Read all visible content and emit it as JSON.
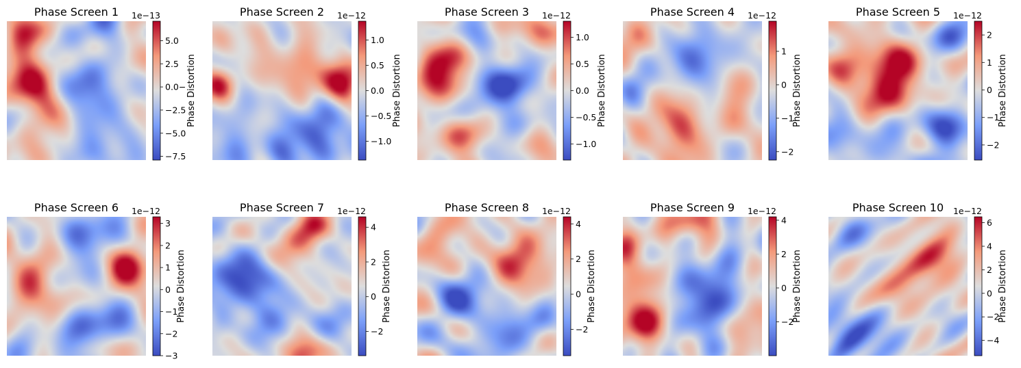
{
  "chart_data": [
    {
      "type": "heatmap",
      "title": "Phase Screen 1",
      "colorbar": {
        "label": "Phase Distortion",
        "offset_text": "1e−13",
        "ticks": [
          5.0,
          2.5,
          0.0,
          -2.5,
          -5.0,
          -7.5
        ],
        "tick_labels": [
          "5.0",
          "2.5",
          "0.0−",
          "−2.5",
          "−5.0",
          "−7.5"
        ],
        "vmin": -7.9,
        "vmax": 7.1
      },
      "colormap": "coolwarm",
      "axes": "off",
      "blobs": [
        {
          "x": 0.15,
          "y": 0.45,
          "v": 0.85,
          "s": 0.16
        },
        {
          "x": 0.12,
          "y": 0.05,
          "v": 0.7,
          "s": 0.09
        },
        {
          "x": 0.6,
          "y": 0.45,
          "v": -0.8,
          "s": 0.14
        },
        {
          "x": 0.72,
          "y": 0.05,
          "v": -0.6,
          "s": 0.1
        },
        {
          "x": 0.85,
          "y": 0.25,
          "v": 0.4,
          "s": 0.1
        },
        {
          "x": 0.6,
          "y": 0.95,
          "v": -0.6,
          "s": 0.12
        },
        {
          "x": 0.15,
          "y": 0.95,
          "v": 0.5,
          "s": 0.1
        },
        {
          "x": 0.95,
          "y": 0.75,
          "v": -0.3,
          "s": 0.1
        }
      ]
    },
    {
      "type": "heatmap",
      "title": "Phase Screen 2",
      "colorbar": {
        "label": "Phase Distortion",
        "offset_text": "1e−12",
        "ticks": [
          1.0,
          0.5,
          0.0,
          -0.5,
          -1.0
        ],
        "tick_labels": [
          "1.0",
          "0.5",
          "0.0",
          "−0.5",
          "−1.0"
        ],
        "vmin": -1.37,
        "vmax": 1.37
      },
      "colormap": "coolwarm",
      "axes": "off",
      "blobs": [
        {
          "x": 0.92,
          "y": 0.45,
          "v": 0.95,
          "s": 0.12
        },
        {
          "x": 0.6,
          "y": 0.35,
          "v": 0.6,
          "s": 0.14
        },
        {
          "x": 0.3,
          "y": 0.2,
          "v": 0.4,
          "s": 0.1
        },
        {
          "x": 0.05,
          "y": 0.45,
          "v": 0.6,
          "s": 0.08
        },
        {
          "x": 0.75,
          "y": 0.8,
          "v": -0.9,
          "s": 0.14
        },
        {
          "x": 0.15,
          "y": 0.85,
          "v": -0.5,
          "s": 0.12
        },
        {
          "x": 0.5,
          "y": 0.95,
          "v": -0.5,
          "s": 0.1
        },
        {
          "x": 0.9,
          "y": 0.1,
          "v": -0.2,
          "s": 0.08
        }
      ]
    },
    {
      "type": "heatmap",
      "title": "Phase Screen 3",
      "colorbar": {
        "label": "Phase Distortion",
        "offset_text": "1e−12",
        "ticks": [
          1.0,
          0.5,
          0.0,
          -0.5,
          -1.0
        ],
        "tick_labels": [
          "1.0",
          "0.5",
          "0.0",
          "−0.5",
          "−1.0"
        ],
        "vmin": -1.3,
        "vmax": 1.3
      },
      "colormap": "coolwarm",
      "axes": "off",
      "blobs": [
        {
          "x": 0.2,
          "y": 0.3,
          "v": 0.85,
          "s": 0.14
        },
        {
          "x": 0.85,
          "y": 0.1,
          "v": 0.7,
          "s": 0.1
        },
        {
          "x": 0.65,
          "y": 0.5,
          "v": -0.9,
          "s": 0.15
        },
        {
          "x": 0.45,
          "y": 0.15,
          "v": -0.6,
          "s": 0.1
        },
        {
          "x": 0.3,
          "y": 0.85,
          "v": 0.5,
          "s": 0.14
        },
        {
          "x": 0.9,
          "y": 0.75,
          "v": 0.3,
          "s": 0.1
        }
      ]
    },
    {
      "type": "heatmap",
      "title": "Phase Screen 4",
      "colorbar": {
        "label": "Phase Distortion",
        "offset_text": "1e−12",
        "ticks": [
          1,
          0,
          -1,
          -2
        ],
        "tick_labels": [
          "1",
          "0",
          "−1",
          "−2"
        ],
        "vmin": -2.25,
        "vmax": 1.9
      },
      "colormap": "coolwarm",
      "axes": "off",
      "blobs": [
        {
          "x": 0.5,
          "y": 0.25,
          "v": -0.9,
          "s": 0.15
        },
        {
          "x": 0.4,
          "y": 0.75,
          "v": 0.9,
          "s": 0.16
        },
        {
          "x": 0.8,
          "y": 0.75,
          "v": 0.6,
          "s": 0.1
        },
        {
          "x": 0.1,
          "y": 0.15,
          "v": 0.3,
          "s": 0.1
        },
        {
          "x": 0.95,
          "y": 0.3,
          "v": -0.3,
          "s": 0.08
        },
        {
          "x": 0.05,
          "y": 0.5,
          "v": -0.3,
          "s": 0.08
        }
      ]
    },
    {
      "type": "heatmap",
      "title": "Phase Screen 5",
      "colorbar": {
        "label": "Phase Distortion",
        "offset_text": "1e−12",
        "ticks": [
          2,
          1,
          0,
          -1,
          -2
        ],
        "tick_labels": [
          "2",
          "1",
          "0",
          "−1",
          "−2"
        ],
        "vmin": -2.55,
        "vmax": 2.5
      },
      "colormap": "coolwarm",
      "axes": "off",
      "blobs": [
        {
          "x": 0.45,
          "y": 0.4,
          "v": 0.95,
          "s": 0.18
        },
        {
          "x": 0.1,
          "y": 0.3,
          "v": 0.5,
          "s": 0.12
        },
        {
          "x": 0.85,
          "y": 0.8,
          "v": -0.85,
          "s": 0.14
        },
        {
          "x": 0.15,
          "y": 0.85,
          "v": -0.6,
          "s": 0.12
        },
        {
          "x": 0.85,
          "y": 0.1,
          "v": -0.5,
          "s": 0.1
        },
        {
          "x": 0.5,
          "y": 0.95,
          "v": -0.3,
          "s": 0.1
        }
      ]
    },
    {
      "type": "heatmap",
      "title": "Phase Screen 6",
      "colorbar": {
        "label": "Phase Distortion",
        "offset_text": "1e−12",
        "ticks": [
          3,
          2,
          1,
          0,
          -1,
          -2,
          -3
        ],
        "tick_labels": [
          "3",
          "2",
          "1",
          "0",
          "−1",
          "−2",
          "−3"
        ],
        "vmin": -3.0,
        "vmax": 3.3
      },
      "colormap": "coolwarm",
      "axes": "off",
      "blobs": [
        {
          "x": 0.2,
          "y": 0.45,
          "v": 0.85,
          "s": 0.15
        },
        {
          "x": 0.9,
          "y": 0.35,
          "v": 0.9,
          "s": 0.1
        },
        {
          "x": 0.55,
          "y": 0.25,
          "v": -0.5,
          "s": 0.14
        },
        {
          "x": 0.55,
          "y": 0.8,
          "v": -0.8,
          "s": 0.14
        },
        {
          "x": 0.1,
          "y": 0.85,
          "v": -0.4,
          "s": 0.1
        },
        {
          "x": 0.85,
          "y": 0.85,
          "v": -0.4,
          "s": 0.1
        }
      ]
    },
    {
      "type": "heatmap",
      "title": "Phase Screen 7",
      "colorbar": {
        "label": "Phase Distortion",
        "offset_text": "1e−12",
        "ticks": [
          4,
          2,
          0,
          -2
        ],
        "tick_labels": [
          "4",
          "2",
          "0",
          "−2"
        ],
        "vmin": -3.4,
        "vmax": 4.6
      },
      "colormap": "coolwarm",
      "axes": "off",
      "blobs": [
        {
          "x": 0.25,
          "y": 0.4,
          "v": -0.9,
          "s": 0.16
        },
        {
          "x": 0.7,
          "y": 0.05,
          "v": 0.8,
          "s": 0.1
        },
        {
          "x": 0.65,
          "y": 0.95,
          "v": 0.8,
          "s": 0.1
        },
        {
          "x": 0.4,
          "y": 0.75,
          "v": -0.6,
          "s": 0.12
        },
        {
          "x": 0.85,
          "y": 0.5,
          "v": -0.3,
          "s": 0.1
        },
        {
          "x": 0.05,
          "y": 0.8,
          "v": -0.4,
          "s": 0.08
        }
      ]
    },
    {
      "type": "heatmap",
      "title": "Phase Screen 8",
      "colorbar": {
        "label": "Phase Distortion",
        "offset_text": "1e−12",
        "ticks": [
          4,
          2,
          0,
          -2
        ],
        "tick_labels": [
          "4",
          "2",
          "0",
          "−2"
        ],
        "vmin": -3.5,
        "vmax": 4.4
      },
      "colormap": "coolwarm",
      "axes": "off",
      "blobs": [
        {
          "x": 0.7,
          "y": 0.3,
          "v": 0.85,
          "s": 0.13
        },
        {
          "x": 0.3,
          "y": 0.6,
          "v": -0.7,
          "s": 0.14
        },
        {
          "x": 0.65,
          "y": 0.85,
          "v": -0.7,
          "s": 0.12
        },
        {
          "x": 0.15,
          "y": 0.1,
          "v": 0.5,
          "s": 0.1
        },
        {
          "x": 0.9,
          "y": 0.75,
          "v": -0.4,
          "s": 0.08
        },
        {
          "x": 0.05,
          "y": 0.45,
          "v": 0.3,
          "s": 0.08
        }
      ]
    },
    {
      "type": "heatmap",
      "title": "Phase Screen 9",
      "colorbar": {
        "label": "Phase Distortion",
        "offset_text": "1e−12",
        "ticks": [
          4,
          2,
          0,
          -2
        ],
        "tick_labels": [
          "4",
          "2",
          "0",
          "−2"
        ],
        "vmin": -4.0,
        "vmax": 4.2
      },
      "colormap": "coolwarm",
      "axes": "off",
      "blobs": [
        {
          "x": 0.05,
          "y": 0.2,
          "v": 0.85,
          "s": 0.1
        },
        {
          "x": 0.15,
          "y": 0.75,
          "v": 0.8,
          "s": 0.14
        },
        {
          "x": 0.45,
          "y": 0.05,
          "v": 0.6,
          "s": 0.08
        },
        {
          "x": 0.65,
          "y": 0.45,
          "v": -0.8,
          "s": 0.14
        },
        {
          "x": 0.5,
          "y": 0.75,
          "v": -0.6,
          "s": 0.12
        },
        {
          "x": 0.95,
          "y": 0.85,
          "v": 0.4,
          "s": 0.1
        }
      ]
    },
    {
      "type": "heatmap",
      "title": "Phase Screen 10",
      "colorbar": {
        "label": "Phase Distortion",
        "offset_text": "1e−12",
        "ticks": [
          6,
          4,
          2,
          0,
          -2,
          -4
        ],
        "tick_labels": [
          "6",
          "4",
          "2",
          "0",
          "−2",
          "−4"
        ],
        "vmin": -5.3,
        "vmax": 6.5
      },
      "colormap": "coolwarm",
      "axes": "off",
      "blobs": [
        {
          "x": 0.7,
          "y": 0.3,
          "v": 0.85,
          "s": 0.13
        },
        {
          "x": 0.45,
          "y": 0.55,
          "v": 0.6,
          "s": 0.12
        },
        {
          "x": 0.25,
          "y": 0.85,
          "v": -0.85,
          "s": 0.14
        },
        {
          "x": 0.15,
          "y": 0.1,
          "v": -0.6,
          "s": 0.1
        },
        {
          "x": 0.9,
          "y": 0.75,
          "v": -0.4,
          "s": 0.1
        },
        {
          "x": 0.9,
          "y": 0.05,
          "v": 0.3,
          "s": 0.08
        }
      ]
    }
  ]
}
